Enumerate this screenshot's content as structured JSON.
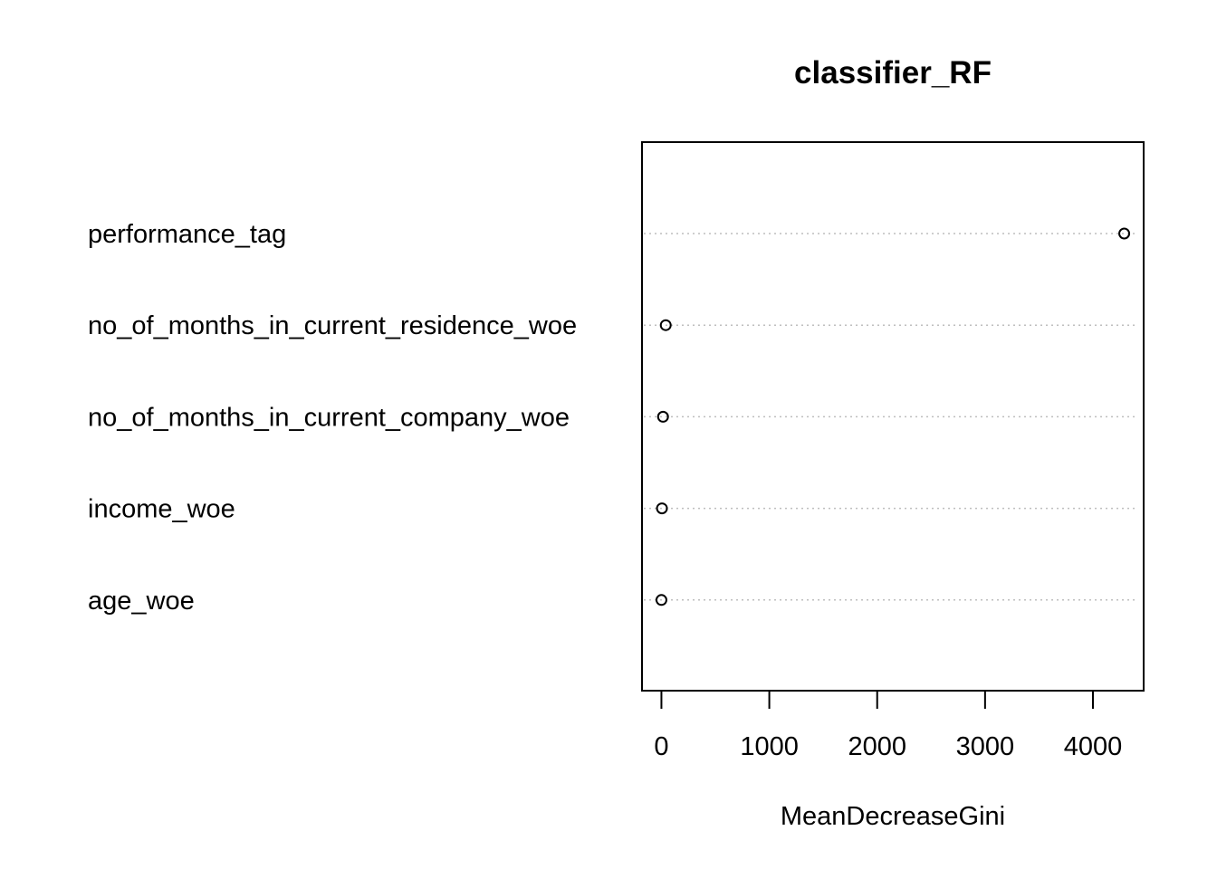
{
  "chart_data": {
    "type": "scatter",
    "title": "classifier_RF",
    "xlabel": "MeanDecreaseGini",
    "ylabel": "",
    "categories": [
      "performance_tag",
      "no_of_months_in_current_residence_woe",
      "no_of_months_in_current_company_woe",
      "income_woe",
      "age_woe"
    ],
    "values": [
      4290,
      40,
      15,
      5,
      0
    ],
    "xlim": [
      -180,
      4470
    ],
    "xticks": [
      0,
      1000,
      2000,
      3000,
      4000
    ],
    "xtick_labels": [
      "0",
      "1000",
      "2000",
      "3000",
      "4000"
    ],
    "grid": "dotted horizontal guide lines per variable",
    "colors": {
      "points": "#000000",
      "guides": "#bebebe",
      "frame": "#000000"
    }
  }
}
